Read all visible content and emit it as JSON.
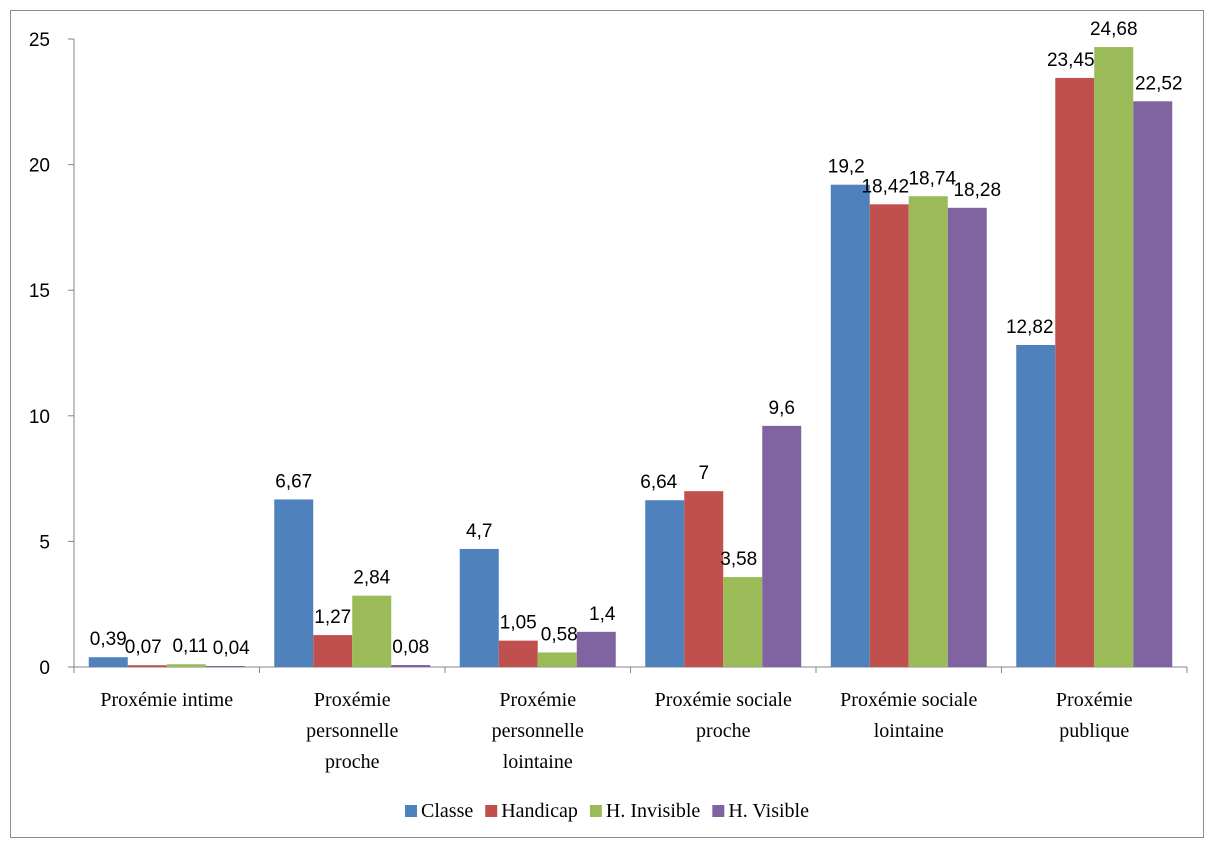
{
  "chart_data": {
    "type": "bar",
    "title": "",
    "xlabel": "",
    "ylabel": "",
    "ylim": [
      0,
      25
    ],
    "yticks": [
      0,
      5,
      10,
      15,
      20,
      25
    ],
    "grid": false,
    "legend_position": "bottom",
    "categories": [
      [
        "Proxémie intime"
      ],
      [
        "Proxémie",
        "personnelle",
        "proche"
      ],
      [
        "Proxémie",
        "personnelle",
        "lointaine"
      ],
      [
        "Proxémie sociale",
        "proche"
      ],
      [
        "Proxémie sociale",
        "lointaine"
      ],
      [
        "Proxémie",
        "publique"
      ]
    ],
    "series": [
      {
        "name": "Classe",
        "color": "#4f81bd",
        "values": [
          0.39,
          6.67,
          4.7,
          6.64,
          19.2,
          12.82
        ],
        "labels": [
          "0,39",
          "6,67",
          "4,7",
          "6,64",
          "19,2",
          "12,82"
        ]
      },
      {
        "name": "Handicap",
        "color": "#c0504d",
        "values": [
          0.07,
          1.27,
          1.05,
          7,
          18.42,
          23.45
        ],
        "labels": [
          "0,07",
          "1,27",
          "1,05",
          "7",
          "18,42",
          "23,45"
        ]
      },
      {
        "name": "H. Invisible",
        "color": "#9bbb59",
        "values": [
          0.11,
          2.84,
          0.58,
          3.58,
          18.74,
          24.68
        ],
        "labels": [
          "0,11",
          "2,84",
          "0,58",
          "3,58",
          "18,74",
          "24,68"
        ]
      },
      {
        "name": "H. Visible",
        "color": "#8064a2",
        "values": [
          0.04,
          0.08,
          1.4,
          9.6,
          18.28,
          22.52
        ],
        "labels": [
          "0,04",
          "0,08",
          "1,4",
          "9,6",
          "18,28",
          "22,52"
        ]
      }
    ]
  }
}
